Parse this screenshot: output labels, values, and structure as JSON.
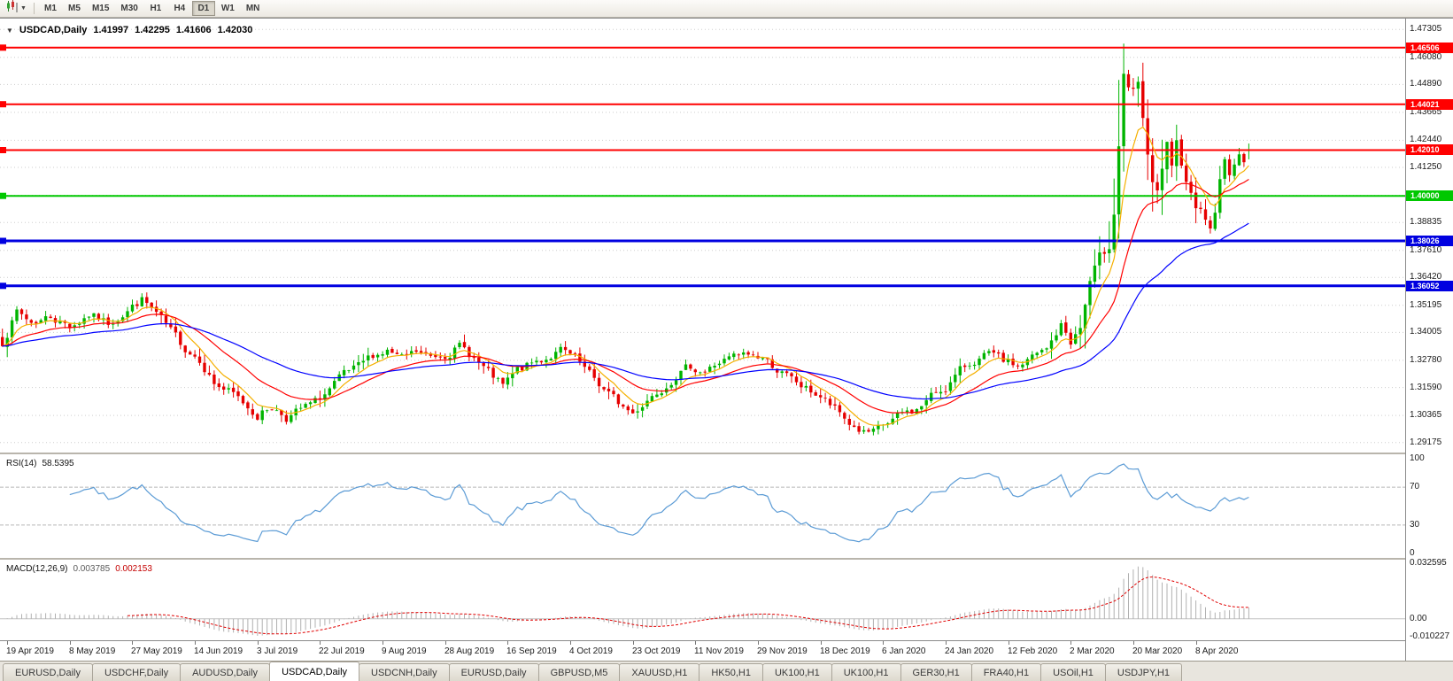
{
  "toolbar": {
    "chart_menu_icon": "candlestick-chart-icon",
    "periods": [
      "M1",
      "M5",
      "M15",
      "M30",
      "H1",
      "H4",
      "D1",
      "W1",
      "MN"
    ],
    "active_period": "D1"
  },
  "chart_data": {
    "type": "candlestick",
    "title_symbol": "USDCAD,Daily",
    "ohlc_text": {
      "o": "1.41997",
      "h": "1.42295",
      "l": "1.41606",
      "c": "1.42030"
    },
    "ohlc_current": {
      "open": 1.41997,
      "high": 1.42295,
      "low": 1.41606,
      "close": 1.4203
    },
    "x_labels": [
      "19 Apr 2019",
      "8 May 2019",
      "27 May 2019",
      "14 Jun 2019",
      "3 Jul 2019",
      "22 Jul 2019",
      "9 Aug 2019",
      "28 Aug 2019",
      "16 Sep 2019",
      "4 Oct 2019",
      "23 Oct 2019",
      "11 Nov 2019",
      "29 Nov 2019",
      "18 Dec 2019",
      "6 Jan 2020",
      "24 Jan 2020",
      "12 Feb 2020",
      "2 Mar 2020",
      "20 Mar 2020",
      "8 Apr 2020"
    ],
    "y_ticks": [
      "1.47305",
      "1.46080",
      "1.44890",
      "1.43665",
      "1.42440",
      "1.41250",
      "1.40025",
      "1.38835",
      "1.37610",
      "1.36420",
      "1.35195",
      "1.34005",
      "1.32780",
      "1.31590",
      "1.30365",
      "1.29175"
    ],
    "ylim": [
      1.28736,
      1.4778
    ],
    "bars_visible": 260,
    "colors": {
      "up": "#00b400",
      "down": "#e60000",
      "grid": "#cdcdcd",
      "background": "#ffffff"
    },
    "hlines": [
      {
        "price": 1.46506,
        "label": "1.46506",
        "color": "#ff0000",
        "width": 2
      },
      {
        "price": 1.44021,
        "label": "1.44021",
        "color": "#ff0000",
        "width": 2
      },
      {
        "price": 1.4201,
        "label": "1.42010",
        "color": "#ff0000",
        "width": 2
      },
      {
        "price": 1.4,
        "label": "1.40000",
        "color": "#00c800",
        "width": 2
      },
      {
        "price": 1.38026,
        "label": "1.38026",
        "color": "#0000e0",
        "width": 3
      },
      {
        "price": 1.36052,
        "label": "1.36052",
        "color": "#0000e0",
        "width": 3
      }
    ],
    "moving_averages": [
      {
        "type": "ema",
        "period": 7,
        "color": "#f5b000"
      },
      {
        "type": "ema",
        "period": 20,
        "color": "#ff0000"
      },
      {
        "type": "ema",
        "period": 50,
        "color": "#0000ff"
      }
    ],
    "anchors_close": [
      [
        0,
        1.336
      ],
      [
        3,
        1.349
      ],
      [
        6,
        1.3445
      ],
      [
        10,
        1.347
      ],
      [
        14,
        1.343
      ],
      [
        18,
        1.348
      ],
      [
        22,
        1.344
      ],
      [
        26,
        1.35
      ],
      [
        29,
        1.3545
      ],
      [
        32,
        1.348
      ],
      [
        35,
        1.34
      ],
      [
        38,
        1.333
      ],
      [
        41,
        1.329
      ],
      [
        44,
        1.318
      ],
      [
        47,
        1.314
      ],
      [
        50,
        1.309
      ],
      [
        53,
        1.304
      ],
      [
        56,
        1.3075
      ],
      [
        59,
        1.303
      ],
      [
        62,
        1.306
      ],
      [
        65,
        1.309
      ],
      [
        68,
        1.315
      ],
      [
        71,
        1.321
      ],
      [
        74,
        1.324
      ],
      [
        77,
        1.33
      ],
      [
        80,
        1.332
      ],
      [
        83,
        1.328
      ],
      [
        86,
        1.331
      ],
      [
        89,
        1.329
      ],
      [
        92,
        1.331
      ],
      [
        95,
        1.334
      ],
      [
        98,
        1.329
      ],
      [
        101,
        1.322
      ],
      [
        104,
        1.316
      ],
      [
        107,
        1.323
      ],
      [
        110,
        1.326
      ],
      [
        113,
        1.329
      ],
      [
        116,
        1.332
      ],
      [
        119,
        1.328
      ],
      [
        122,
        1.321
      ],
      [
        125,
        1.315
      ],
      [
        128,
        1.309
      ],
      [
        131,
        1.3045
      ],
      [
        134,
        1.311
      ],
      [
        137,
        1.316
      ],
      [
        140,
        1.322
      ],
      [
        143,
        1.325
      ],
      [
        146,
        1.323
      ],
      [
        149,
        1.327
      ],
      [
        152,
        1.329
      ],
      [
        155,
        1.33
      ],
      [
        158,
        1.329
      ],
      [
        161,
        1.324
      ],
      [
        164,
        1.319
      ],
      [
        167,
        1.315
      ],
      [
        170,
        1.312
      ],
      [
        173,
        1.306
      ],
      [
        176,
        1.3
      ],
      [
        179,
        1.296
      ],
      [
        181,
        1.2955
      ],
      [
        184,
        1.3
      ],
      [
        187,
        1.304
      ],
      [
        190,
        1.306
      ],
      [
        193,
        1.312
      ],
      [
        196,
        1.316
      ],
      [
        199,
        1.323
      ],
      [
        202,
        1.328
      ],
      [
        205,
        1.33
      ],
      [
        208,
        1.327
      ],
      [
        211,
        1.325
      ],
      [
        214,
        1.329
      ],
      [
        217,
        1.332
      ],
      [
        220,
        1.343
      ],
      [
        222,
        1.336
      ],
      [
        224,
        1.342
      ],
      [
        226,
        1.362
      ],
      [
        228,
        1.37
      ],
      [
        230,
        1.38
      ],
      [
        231,
        1.395
      ],
      [
        232,
        1.423
      ],
      [
        233,
        1.455
      ],
      [
        234,
        1.445
      ],
      [
        235,
        1.443
      ],
      [
        236,
        1.448
      ],
      [
        237,
        1.43
      ],
      [
        238,
        1.418
      ],
      [
        239,
        1.406
      ],
      [
        240,
        1.399
      ],
      [
        241,
        1.409
      ],
      [
        242,
        1.42
      ],
      [
        243,
        1.413
      ],
      [
        244,
        1.421
      ],
      [
        245,
        1.408
      ],
      [
        246,
        1.401
      ],
      [
        247,
        1.403
      ],
      [
        248,
        1.398
      ],
      [
        249,
        1.394
      ],
      [
        250,
        1.391
      ],
      [
        251,
        1.388
      ],
      [
        252,
        1.392
      ],
      [
        253,
        1.408
      ],
      [
        254,
        1.416
      ],
      [
        255,
        1.41
      ],
      [
        256,
        1.413
      ],
      [
        257,
        1.417
      ],
      [
        258,
        1.416
      ],
      [
        259,
        1.4203
      ]
    ],
    "forced": {
      "peak": {
        "index": 233,
        "high": 1.4668
      },
      "trough": {
        "index": 181,
        "low": 1.2949
      }
    },
    "indicators": {
      "rsi": {
        "label": "RSI(14)",
        "period": 14,
        "value_text": "58.5395",
        "levels": [
          70,
          30
        ],
        "y_ticks": [
          "100",
          "70",
          "30",
          "0"
        ],
        "color": "#5b9bd5"
      },
      "macd": {
        "label": "MACD(12,26,9)",
        "fast": 12,
        "slow": 26,
        "signal": 9,
        "main_text": "0.003785",
        "signal_text": "0.002153",
        "y_ticks": [
          "0.032595",
          "0.00",
          "-0.010227"
        ],
        "main_color": "#b0b0b0",
        "signal_color": "#e00000",
        "scale": [
          -0.0125,
          0.0345
        ]
      }
    }
  },
  "tabs": {
    "items": [
      "EURUSD,Daily",
      "USDCHF,Daily",
      "AUDUSD,Daily",
      "USDCAD,Daily",
      "USDCNH,Daily",
      "EURUSD,Daily",
      "GBPUSD,M5",
      "XAUUSD,H1",
      "HK50,H1",
      "UK100,H1",
      "UK100,H1",
      "GER30,H1",
      "FRA40,H1",
      "USOil,H1",
      "USDJPY,H1"
    ],
    "active_index": 3
  }
}
